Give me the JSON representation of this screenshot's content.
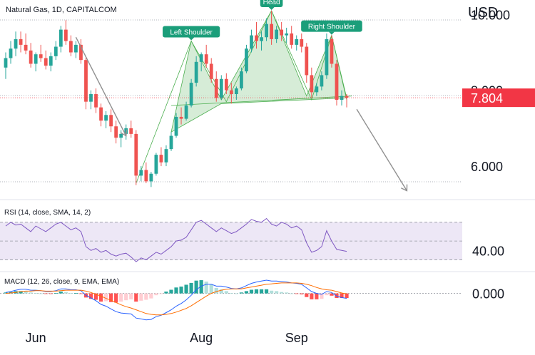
{
  "chart_data": {
    "type": "candlestick",
    "title": "Natural Gas, 1D, CAPITALCOM",
    "currency": "USD",
    "last_price": "7.804",
    "x_tick_labels": [
      "Jun",
      "Aug",
      "Sep"
    ],
    "price_axis": {
      "tick_labels": [
        "10.000",
        "8.000",
        "6.000"
      ],
      "tick_values": [
        10.0,
        8.0,
        6.0
      ],
      "range": [
        5.4,
        10.1
      ]
    },
    "pattern": {
      "name": "Head and Shoulders",
      "labels": [
        "Left Shoulder",
        "Head",
        "Right Shoulder"
      ]
    },
    "candles": [
      {
        "o": 8.6,
        "h": 9.0,
        "l": 8.3,
        "c": 8.85
      },
      {
        "o": 8.85,
        "h": 9.3,
        "l": 8.7,
        "c": 9.1
      },
      {
        "o": 9.1,
        "h": 9.55,
        "l": 8.9,
        "c": 9.35
      },
      {
        "o": 9.35,
        "h": 9.55,
        "l": 9.0,
        "c": 9.2
      },
      {
        "o": 9.2,
        "h": 9.5,
        "l": 8.95,
        "c": 9.05
      },
      {
        "o": 9.05,
        "h": 9.25,
        "l": 8.6,
        "c": 8.7
      },
      {
        "o": 8.7,
        "h": 9.0,
        "l": 8.5,
        "c": 8.95
      },
      {
        "o": 8.95,
        "h": 9.2,
        "l": 8.75,
        "c": 8.85
      },
      {
        "o": 8.85,
        "h": 9.05,
        "l": 8.55,
        "c": 8.65
      },
      {
        "o": 8.65,
        "h": 9.0,
        "l": 8.5,
        "c": 8.9
      },
      {
        "o": 8.9,
        "h": 9.3,
        "l": 8.8,
        "c": 9.15
      },
      {
        "o": 9.15,
        "h": 9.7,
        "l": 9.0,
        "c": 9.6
      },
      {
        "o": 9.6,
        "h": 9.85,
        "l": 9.2,
        "c": 9.3
      },
      {
        "o": 9.3,
        "h": 9.45,
        "l": 8.9,
        "c": 9.0
      },
      {
        "o": 9.0,
        "h": 9.3,
        "l": 8.85,
        "c": 9.2
      },
      {
        "o": 9.2,
        "h": 9.35,
        "l": 8.7,
        "c": 8.8
      },
      {
        "o": 8.8,
        "h": 8.9,
        "l": 7.5,
        "c": 7.7
      },
      {
        "o": 7.7,
        "h": 8.0,
        "l": 7.5,
        "c": 7.9
      },
      {
        "o": 7.9,
        "h": 8.05,
        "l": 7.4,
        "c": 7.55
      },
      {
        "o": 7.55,
        "h": 7.65,
        "l": 7.05,
        "c": 7.2
      },
      {
        "o": 7.2,
        "h": 7.45,
        "l": 7.0,
        "c": 7.35
      },
      {
        "o": 7.35,
        "h": 7.5,
        "l": 6.9,
        "c": 7.05
      },
      {
        "o": 7.05,
        "h": 7.2,
        "l": 6.6,
        "c": 6.75
      },
      {
        "o": 6.75,
        "h": 6.95,
        "l": 6.5,
        "c": 6.85
      },
      {
        "o": 6.85,
        "h": 7.1,
        "l": 6.7,
        "c": 7.0
      },
      {
        "o": 7.0,
        "h": 7.2,
        "l": 6.75,
        "c": 6.85
      },
      {
        "o": 6.85,
        "h": 6.95,
        "l": 5.5,
        "c": 5.75
      },
      {
        "o": 5.75,
        "h": 6.0,
        "l": 5.6,
        "c": 5.9
      },
      {
        "o": 5.9,
        "h": 6.1,
        "l": 5.55,
        "c": 5.6
      },
      {
        "o": 5.6,
        "h": 5.85,
        "l": 5.45,
        "c": 5.8
      },
      {
        "o": 5.8,
        "h": 6.35,
        "l": 5.75,
        "c": 6.3
      },
      {
        "o": 6.3,
        "h": 6.5,
        "l": 6.0,
        "c": 6.1
      },
      {
        "o": 6.1,
        "h": 6.55,
        "l": 6.0,
        "c": 6.45
      },
      {
        "o": 6.45,
        "h": 6.9,
        "l": 6.4,
        "c": 6.8
      },
      {
        "o": 6.8,
        "h": 7.4,
        "l": 6.75,
        "c": 7.3
      },
      {
        "o": 7.3,
        "h": 7.55,
        "l": 7.1,
        "c": 7.25
      },
      {
        "o": 7.25,
        "h": 7.7,
        "l": 7.2,
        "c": 7.6
      },
      {
        "o": 7.6,
        "h": 8.3,
        "l": 7.55,
        "c": 8.2
      },
      {
        "o": 8.2,
        "h": 8.9,
        "l": 8.1,
        "c": 8.75
      },
      {
        "o": 8.75,
        "h": 9.0,
        "l": 8.5,
        "c": 8.95
      },
      {
        "o": 8.95,
        "h": 9.2,
        "l": 8.6,
        "c": 8.7
      },
      {
        "o": 8.7,
        "h": 8.85,
        "l": 8.2,
        "c": 8.3
      },
      {
        "o": 8.3,
        "h": 8.5,
        "l": 7.7,
        "c": 7.8
      },
      {
        "o": 7.8,
        "h": 8.4,
        "l": 7.75,
        "c": 8.3
      },
      {
        "o": 8.3,
        "h": 8.45,
        "l": 7.9,
        "c": 8.0
      },
      {
        "o": 8.0,
        "h": 8.2,
        "l": 7.65,
        "c": 7.9
      },
      {
        "o": 7.9,
        "h": 8.1,
        "l": 7.75,
        "c": 8.05
      },
      {
        "o": 8.05,
        "h": 8.6,
        "l": 8.0,
        "c": 8.5
      },
      {
        "o": 8.5,
        "h": 9.2,
        "l": 8.45,
        "c": 9.1
      },
      {
        "o": 9.1,
        "h": 9.6,
        "l": 9.0,
        "c": 9.45
      },
      {
        "o": 9.45,
        "h": 9.8,
        "l": 9.1,
        "c": 9.3
      },
      {
        "o": 9.3,
        "h": 9.55,
        "l": 9.05,
        "c": 9.4
      },
      {
        "o": 9.4,
        "h": 9.9,
        "l": 9.3,
        "c": 9.75
      },
      {
        "o": 9.75,
        "h": 10.1,
        "l": 9.2,
        "c": 9.35
      },
      {
        "o": 9.35,
        "h": 9.7,
        "l": 9.25,
        "c": 9.6
      },
      {
        "o": 9.6,
        "h": 9.8,
        "l": 9.3,
        "c": 9.45
      },
      {
        "o": 9.45,
        "h": 9.65,
        "l": 9.25,
        "c": 9.5
      },
      {
        "o": 9.5,
        "h": 9.7,
        "l": 9.1,
        "c": 9.2
      },
      {
        "o": 9.2,
        "h": 9.45,
        "l": 9.05,
        "c": 9.35
      },
      {
        "o": 9.35,
        "h": 9.5,
        "l": 9.0,
        "c": 9.15
      },
      {
        "o": 9.15,
        "h": 9.25,
        "l": 8.2,
        "c": 8.4
      },
      {
        "o": 8.4,
        "h": 8.6,
        "l": 7.8,
        "c": 7.95
      },
      {
        "o": 7.95,
        "h": 8.2,
        "l": 7.85,
        "c": 8.1
      },
      {
        "o": 8.1,
        "h": 8.5,
        "l": 8.0,
        "c": 8.4
      },
      {
        "o": 8.4,
        "h": 9.5,
        "l": 8.3,
        "c": 9.35
      },
      {
        "o": 9.35,
        "h": 9.45,
        "l": 8.6,
        "c": 8.7
      },
      {
        "o": 8.7,
        "h": 8.8,
        "l": 7.6,
        "c": 7.75
      },
      {
        "o": 7.75,
        "h": 8.0,
        "l": 7.6,
        "c": 7.85
      },
      {
        "o": 7.85,
        "h": 7.9,
        "l": 7.55,
        "c": 7.804
      }
    ],
    "rsi": {
      "label": "RSI (14, close, SMA, 14, 2)",
      "tick_label": "40.00",
      "tick_value": 40,
      "range": [
        25,
        82
      ],
      "upper_band": 70,
      "lower_band": 30,
      "values": [
        66,
        70,
        67,
        68,
        64,
        60,
        66,
        63,
        60,
        64,
        68,
        70,
        66,
        62,
        64,
        60,
        44,
        40,
        42,
        38,
        40,
        36,
        34,
        36,
        37,
        33,
        28,
        32,
        30,
        34,
        38,
        36,
        40,
        44,
        50,
        51,
        54,
        62,
        70,
        72,
        68,
        64,
        60,
        64,
        61,
        58,
        60,
        64,
        68,
        73,
        71,
        70,
        74,
        68,
        66,
        70,
        68,
        64,
        66,
        62,
        48,
        38,
        40,
        44,
        61,
        50,
        41,
        40,
        39
      ]
    },
    "macd": {
      "label": "MACD (12, 26, close, 9, EMA, EMA)",
      "tick_label": "0.000",
      "tick_value": 0,
      "range": [
        -0.6,
        0.4
      ],
      "macd_line": [
        0.02,
        0.04,
        0.07,
        0.09,
        0.09,
        0.07,
        0.07,
        0.06,
        0.04,
        0.04,
        0.06,
        0.1,
        0.1,
        0.08,
        0.08,
        0.06,
        -0.04,
        -0.1,
        -0.16,
        -0.24,
        -0.28,
        -0.34,
        -0.4,
        -0.43,
        -0.44,
        -0.45,
        -0.54,
        -0.56,
        -0.58,
        -0.57,
        -0.51,
        -0.48,
        -0.42,
        -0.36,
        -0.28,
        -0.22,
        -0.14,
        -0.04,
        0.08,
        0.16,
        0.2,
        0.2,
        0.16,
        0.16,
        0.14,
        0.11,
        0.1,
        0.12,
        0.17,
        0.22,
        0.25,
        0.27,
        0.29,
        0.27,
        0.27,
        0.26,
        0.25,
        0.23,
        0.22,
        0.2,
        0.12,
        0.04,
        0.0,
        -0.02,
        0.04,
        0.02,
        -0.06,
        -0.09,
        -0.11
      ],
      "signal_line": [
        0.0,
        0.01,
        0.02,
        0.04,
        0.05,
        0.05,
        0.06,
        0.06,
        0.05,
        0.05,
        0.05,
        0.06,
        0.07,
        0.07,
        0.07,
        0.07,
        0.05,
        0.02,
        -0.02,
        -0.06,
        -0.11,
        -0.15,
        -0.2,
        -0.25,
        -0.29,
        -0.32,
        -0.36,
        -0.4,
        -0.44,
        -0.46,
        -0.47,
        -0.47,
        -0.46,
        -0.44,
        -0.41,
        -0.37,
        -0.33,
        -0.27,
        -0.2,
        -0.13,
        -0.06,
        0.0,
        0.04,
        0.07,
        0.09,
        0.1,
        0.1,
        0.1,
        0.12,
        0.14,
        0.16,
        0.18,
        0.2,
        0.21,
        0.22,
        0.23,
        0.23,
        0.23,
        0.23,
        0.22,
        0.2,
        0.17,
        0.13,
        0.1,
        0.08,
        0.07,
        0.04,
        0.01,
        -0.01
      ],
      "histogram": [
        0.02,
        0.03,
        0.05,
        0.05,
        0.04,
        0.02,
        0.01,
        0.0,
        -0.01,
        -0.01,
        0.01,
        0.04,
        0.03,
        0.01,
        0.01,
        -0.01,
        -0.09,
        -0.12,
        -0.14,
        -0.18,
        -0.17,
        -0.19,
        -0.2,
        -0.18,
        -0.15,
        -0.13,
        -0.18,
        -0.16,
        -0.14,
        -0.11,
        -0.04,
        -0.01,
        0.04,
        0.08,
        0.13,
        0.15,
        0.19,
        0.23,
        0.28,
        0.29,
        0.26,
        0.2,
        0.12,
        0.09,
        0.05,
        0.01,
        0.0,
        0.02,
        0.05,
        0.08,
        0.09,
        0.09,
        0.09,
        0.06,
        0.05,
        0.03,
        0.02,
        0.0,
        -0.01,
        -0.02,
        -0.08,
        -0.13,
        -0.13,
        -0.12,
        -0.04,
        -0.05,
        -0.1,
        -0.1,
        -0.1
      ]
    },
    "colors": {
      "up": "#26a69a",
      "down": "#ef5350",
      "pattern_fill": "#c8e6c9",
      "pattern_stroke": "#4caf50",
      "label_bg": "#1b9e7a",
      "rsi_line": "#7e57c2",
      "rsi_band": "#ede7f6",
      "macd_line": "#2962ff",
      "signal_line": "#ff6d00",
      "price_tag": "#f23645",
      "arrow": "#909090"
    }
  }
}
